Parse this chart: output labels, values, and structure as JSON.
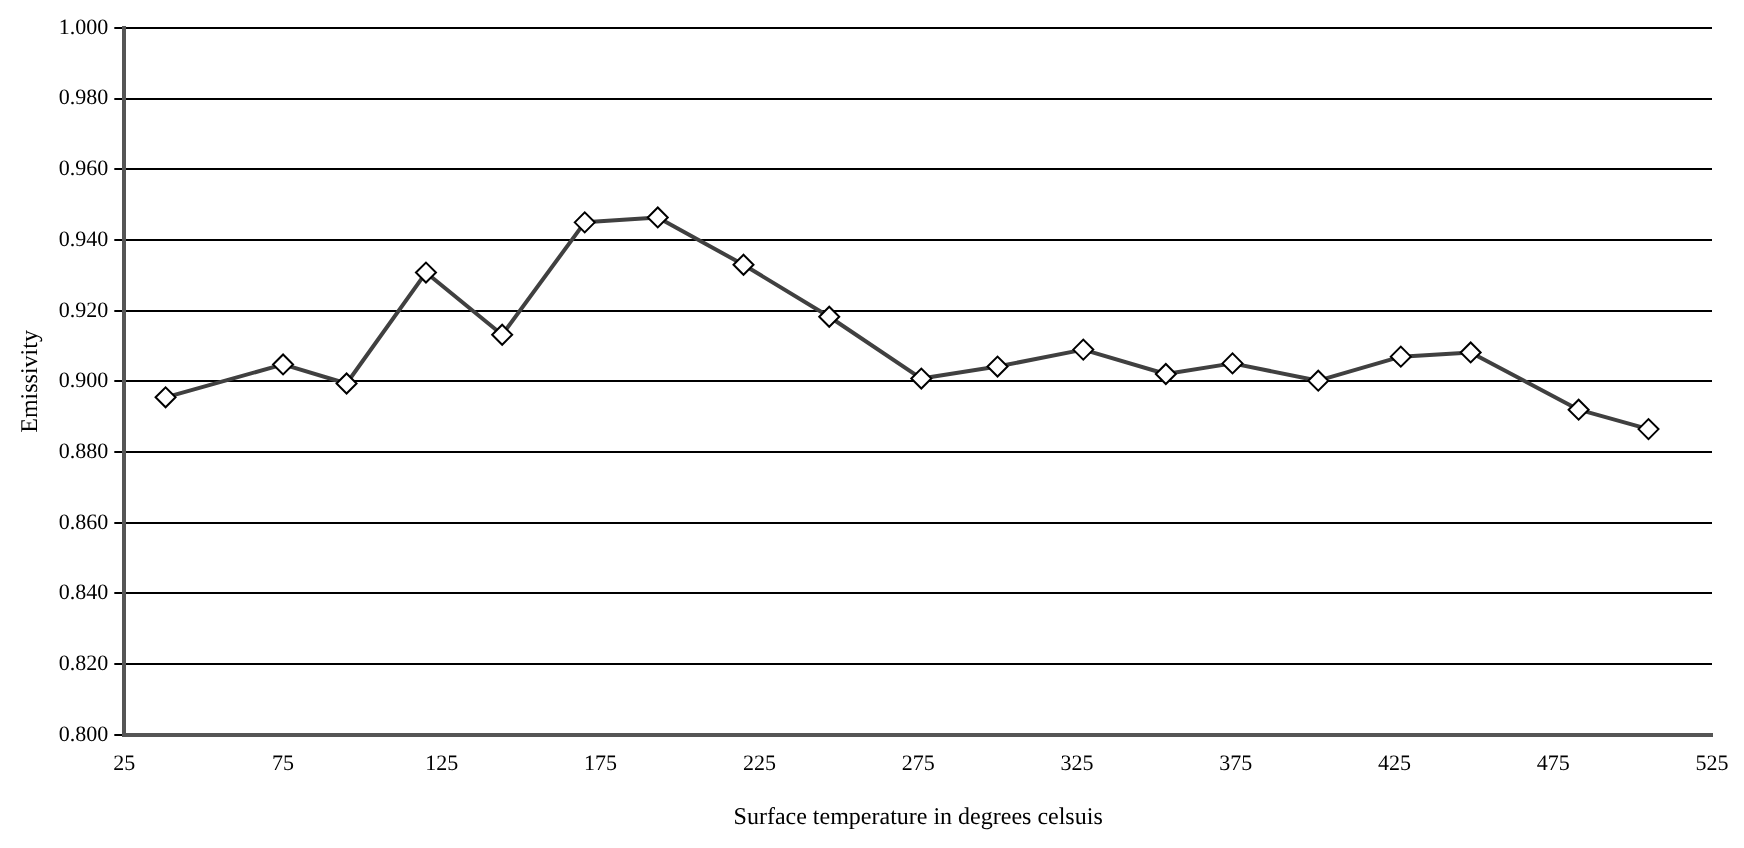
{
  "chart_data": {
    "type": "line",
    "xlabel": "Surface temperature in degrees celsuis",
    "ylabel": "Emissivity",
    "x": [
      38,
      75,
      95,
      120,
      144,
      170,
      193,
      220,
      247,
      276,
      300,
      327,
      353,
      374,
      401,
      427,
      449,
      483,
      505
    ],
    "series": [
      {
        "color": "#404040",
        "values": [
          0.8955,
          0.9048,
          0.8994,
          0.9308,
          0.9132,
          0.945,
          0.9464,
          0.933,
          0.9183,
          0.9008,
          0.9042,
          0.909,
          0.9021,
          0.9051,
          0.9002,
          0.907,
          0.9082,
          0.892,
          0.8865
        ]
      }
    ],
    "xlim": [
      25,
      525
    ],
    "xticks": [
      25,
      75,
      125,
      175,
      225,
      275,
      325,
      375,
      425,
      475,
      525
    ],
    "ylim": [
      0.8,
      1.0
    ],
    "yticks": [
      {
        "value": 0.8,
        "label": "0.800"
      },
      {
        "value": 0.82,
        "label": "0.820"
      },
      {
        "value": 0.84,
        "label": "0.840"
      },
      {
        "value": 0.86,
        "label": "0.860"
      },
      {
        "value": 0.88,
        "label": "0.880"
      },
      {
        "value": 0.9,
        "label": "0.900"
      },
      {
        "value": 0.92,
        "label": "0.920"
      },
      {
        "value": 0.94,
        "label": "0.940"
      },
      {
        "value": 0.96,
        "label": "0.960"
      },
      {
        "value": 0.98,
        "label": "0.980"
      },
      {
        "value": 1.0,
        "label": "1.000"
      }
    ],
    "grid": "y",
    "legend": false,
    "marker": "diamond",
    "line_style": "solid"
  }
}
